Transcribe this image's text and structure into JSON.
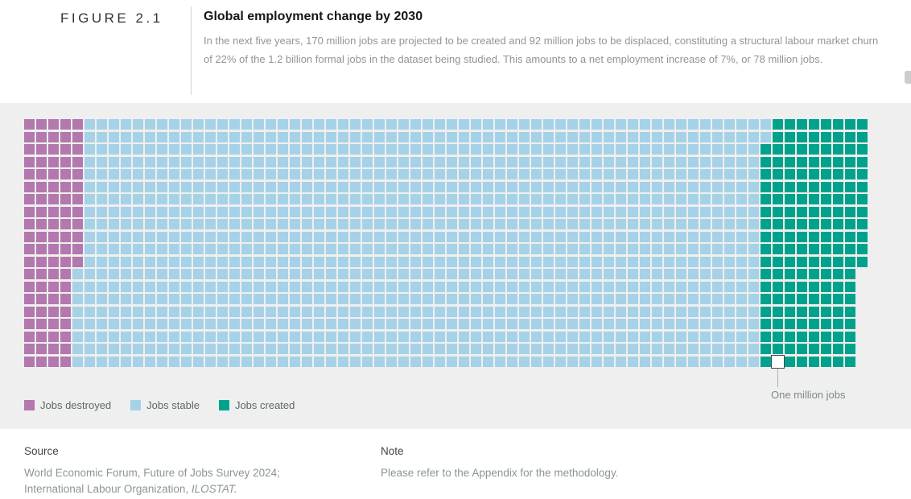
{
  "figure": {
    "label": "FIGURE 2.1",
    "title": "Global employment change by 2030",
    "description": "In the next five years, 170 million jobs are projected to be created and 92 million jobs to be displaced, constituting a structural labour market churn of 22% of the 1.2 billion formal jobs in the dataset being studied. This amounts to a net employment increase of 7%, or 78 million jobs."
  },
  "chart_data": {
    "type": "waffle",
    "title": "Global employment change by 2030",
    "values_millions": {
      "jobs_created": 170,
      "jobs_destroyed": 92,
      "net_employment_increase": 78
    },
    "percentages": {
      "structural_churn_of_formal_jobs": 22,
      "net_employment_increase": 7
    },
    "dataset_total_formal_jobs_billions": 1.2,
    "unit_square": "One million jobs",
    "grid": {
      "rows": 20,
      "cols": 70
    },
    "colors": {
      "destroyed": "#b378ae",
      "stable": "#a6d2e7",
      "created": "#01a28c",
      "band_background": "#efefef"
    },
    "legend": [
      {
        "label": "Jobs destroyed",
        "key": "destroyed"
      },
      {
        "label": "Jobs stable",
        "key": "stable"
      },
      {
        "label": "Jobs created",
        "key": "created"
      }
    ],
    "row_layout": [
      {
        "destroyed": 5,
        "created_from": 62,
        "created_to": 69
      },
      {
        "destroyed": 5,
        "created_from": 62,
        "created_to": 69
      },
      {
        "destroyed": 5,
        "created_from": 61,
        "created_to": 69
      },
      {
        "destroyed": 5,
        "created_from": 61,
        "created_to": 69
      },
      {
        "destroyed": 5,
        "created_from": 61,
        "created_to": 69
      },
      {
        "destroyed": 5,
        "created_from": 61,
        "created_to": 69
      },
      {
        "destroyed": 5,
        "created_from": 61,
        "created_to": 69
      },
      {
        "destroyed": 5,
        "created_from": 61,
        "created_to": 69
      },
      {
        "destroyed": 5,
        "created_from": 61,
        "created_to": 69
      },
      {
        "destroyed": 5,
        "created_from": 61,
        "created_to": 69
      },
      {
        "destroyed": 5,
        "created_from": 61,
        "created_to": 69
      },
      {
        "destroyed": 5,
        "created_from": 61,
        "created_to": 69
      },
      {
        "destroyed": 4,
        "created_from": 61,
        "created_to": 68
      },
      {
        "destroyed": 4,
        "created_from": 61,
        "created_to": 68
      },
      {
        "destroyed": 4,
        "created_from": 61,
        "created_to": 68
      },
      {
        "destroyed": 4,
        "created_from": 61,
        "created_to": 68
      },
      {
        "destroyed": 4,
        "created_from": 61,
        "created_to": 68
      },
      {
        "destroyed": 4,
        "created_from": 61,
        "created_to": 68
      },
      {
        "destroyed": 4,
        "created_from": 61,
        "created_to": 68
      },
      {
        "destroyed": 4,
        "created_from": 61,
        "created_to": 68
      }
    ],
    "callout": {
      "row": 19,
      "col": 62,
      "label": "One million jobs"
    }
  },
  "footer": {
    "source_title": "Source",
    "source_line1": "World Economic Forum, Future of Jobs Survey 2024;",
    "source_line2_prefix": "International Labour Organization, ",
    "source_line2_italic": "ILOSTAT.",
    "note_title": "Note",
    "note_text": "Please refer to the Appendix for the methodology."
  }
}
